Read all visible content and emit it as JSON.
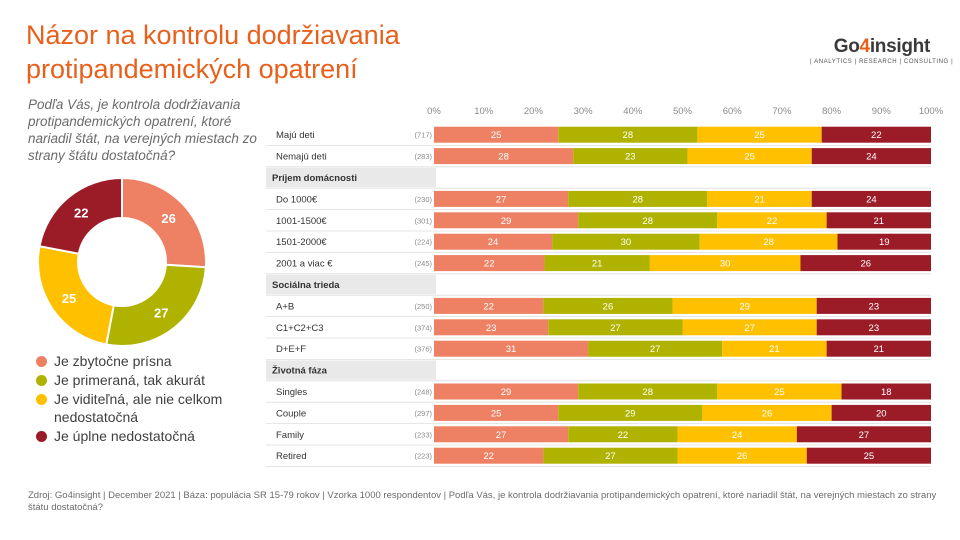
{
  "title": "Názor na kontrolu dodržiavania protipandemických opatrení",
  "logo": {
    "main_pre": "Go",
    "main_four": "4",
    "main_post": "insight",
    "sub": "| ANALYTICS | RESEARCH | CONSULTING |"
  },
  "question": "Podľa Vás, je kontrola dodržiavania protipandemických opatrení, ktoré nariadil štát, na verejných miestach zo strany štátu dostatočná?",
  "source": "Zdroj: Go4insight | December 2021 | Báza: populácia SR 15-79 rokov | Vzorka 1000 respondentov | Podľa Vás, je kontrola dodržiavania protipandemických opatrení, ktoré nariadil štát, na verejných miestach zo strany štátu dostatočná?",
  "colors": [
    "#ee8163",
    "#b0b200",
    "#ffc000",
    "#9b1c27"
  ],
  "chart_data": [
    {
      "type": "pie",
      "variant": "donut",
      "categories": [
        "Je zbytočne prísna",
        "Je primeraná, tak akurát",
        "Je viditeľná, ale nie celkom nedostatočná",
        "Je úplne nedostatočná"
      ],
      "values": [
        26,
        27,
        25,
        22
      ]
    },
    {
      "type": "bar",
      "orientation": "horizontal",
      "stacked": true,
      "xlim": [
        0,
        100
      ],
      "xticks": [
        "0%",
        "10%",
        "20%",
        "30%",
        "40%",
        "50%",
        "60%",
        "70%",
        "80%",
        "90%",
        "100%"
      ],
      "series_names": [
        "Je zbytočne prísna",
        "Je primeraná, tak akurát",
        "Je viditeľná, ale nie celkom nedostatočná",
        "Je úplne nedostatočná"
      ],
      "rows": [
        {
          "kind": "bar",
          "label": "Majú deti",
          "n": "(717)",
          "values": [
            25,
            28,
            25,
            22
          ]
        },
        {
          "kind": "bar",
          "label": "Nemajú deti",
          "n": "(283)",
          "values": [
            28,
            23,
            25,
            24
          ]
        },
        {
          "kind": "header",
          "label": "Príjem domácnosti"
        },
        {
          "kind": "bar",
          "label": "Do 1000€",
          "n": "(230)",
          "values": [
            27,
            28,
            21,
            24
          ]
        },
        {
          "kind": "bar",
          "label": "1001-1500€",
          "n": "(301)",
          "values": [
            29,
            28,
            22,
            21
          ]
        },
        {
          "kind": "bar",
          "label": "1501-2000€",
          "n": "(224)",
          "values": [
            24,
            30,
            28,
            19
          ]
        },
        {
          "kind": "bar",
          "label": "2001 a viac €",
          "n": "(245)",
          "values": [
            22,
            21,
            30,
            26
          ]
        },
        {
          "kind": "header",
          "label": "Sociálna trieda"
        },
        {
          "kind": "bar",
          "label": "A+B",
          "n": "(250)",
          "values": [
            22,
            26,
            29,
            23
          ]
        },
        {
          "kind": "bar",
          "label": "C1+C2+C3",
          "n": "(374)",
          "values": [
            23,
            27,
            27,
            23
          ]
        },
        {
          "kind": "bar",
          "label": "D+E+F",
          "n": "(376)",
          "values": [
            31,
            27,
            21,
            21
          ]
        },
        {
          "kind": "header",
          "label": "Životná fáza"
        },
        {
          "kind": "bar",
          "label": "Singles",
          "n": "(248)",
          "values": [
            29,
            28,
            25,
            18
          ]
        },
        {
          "kind": "bar",
          "label": "Couple",
          "n": "(297)",
          "values": [
            25,
            29,
            26,
            20
          ]
        },
        {
          "kind": "bar",
          "label": "Family",
          "n": "(233)",
          "values": [
            27,
            22,
            24,
            27
          ]
        },
        {
          "kind": "bar",
          "label": "Retired",
          "n": "(223)",
          "values": [
            22,
            27,
            26,
            25
          ]
        }
      ]
    }
  ]
}
